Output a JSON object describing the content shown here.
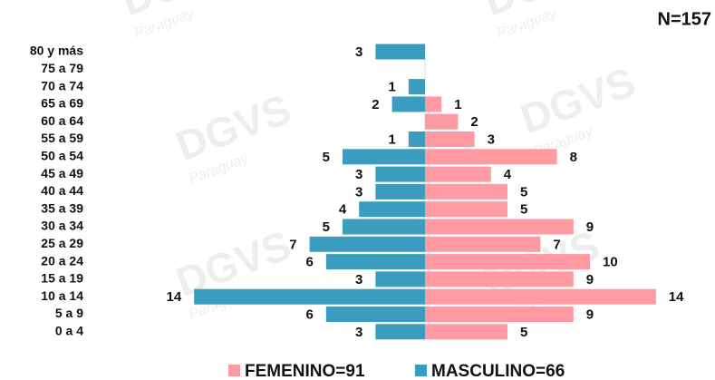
{
  "chart_data": {
    "type": "pyramid",
    "note_label": "N=157",
    "watermark": "DGVS",
    "watermark_sub": "Paraguay",
    "categories": [
      "80 y más",
      "75 a 79",
      "70 a 74",
      "65 a 69",
      "60 a 64",
      "55 a 59",
      "50 a 54",
      "45 a 49",
      "40 a 44",
      "35 a 39",
      "30 a 34",
      "25 a 29",
      "20 a 24",
      "15 a 19",
      "10 a 14",
      "5 a 9",
      "0 a 4"
    ],
    "series": [
      {
        "name": "FEMENINO=91",
        "color": "#ff9aa2",
        "values": [
          null,
          null,
          null,
          1,
          2,
          3,
          8,
          4,
          5,
          5,
          9,
          7,
          10,
          9,
          14,
          9,
          5
        ]
      },
      {
        "name": "MASCULINO=66",
        "color": "#3a9dc0",
        "values": [
          3,
          null,
          1,
          2,
          null,
          1,
          5,
          3,
          3,
          4,
          5,
          7,
          6,
          3,
          14,
          6,
          3
        ]
      }
    ]
  }
}
